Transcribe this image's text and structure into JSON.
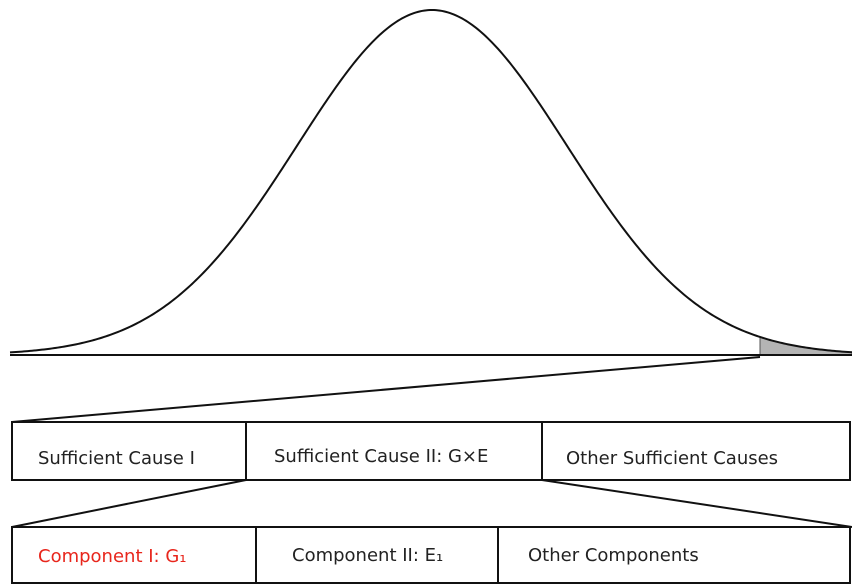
{
  "causes": [
    "Sufficient Cause I",
    "Sufficient Cause II: G×E",
    "Other Sufficient Causes"
  ],
  "components": [
    "Component I: G₁",
    "Component II: E₁",
    "Other Components"
  ]
}
